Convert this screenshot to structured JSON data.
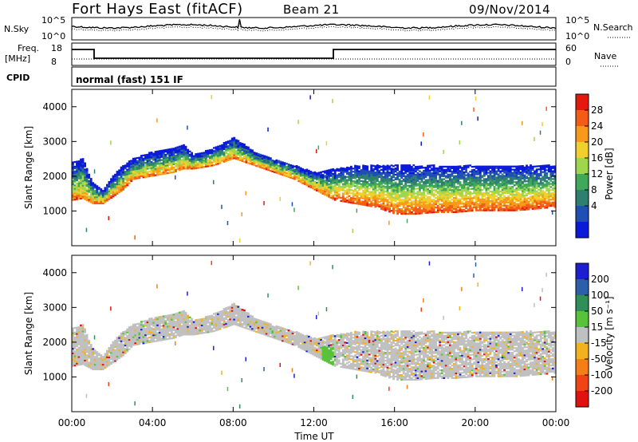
{
  "header": {
    "station": "Fort Hays East (fitACF)",
    "beam": "Beam 21",
    "date": "09/Nov/2014"
  },
  "panel_labels": {
    "nsky": "N.Sky",
    "nsearch": "N.Search",
    "freq": "Freq.",
    "freq_unit": "[MHz]",
    "nave": "Nave",
    "cpid": "CPID",
    "cpid_value": "normal (fast) 151 IF",
    "nsky_ticks": [
      "10^5",
      "10^0"
    ],
    "nsearch_ticks": [
      "10^5",
      "10^0"
    ],
    "freq_ticks": [
      "18",
      "8"
    ],
    "nave_ticks": [
      "60",
      "0"
    ]
  },
  "chart_data": [
    {
      "type": "heatmap",
      "name": "power",
      "ylabel": "Slant Range [km]",
      "ylim": [
        0,
        4500
      ],
      "yticks": [
        "4000",
        "3000",
        "2000",
        "1000"
      ],
      "yticks_values": [
        4000,
        3000,
        2000,
        1000
      ],
      "colorbar_label": "Power [dB]",
      "colorbar_ticks": [
        "28",
        "24",
        "20",
        "16",
        "12",
        "8",
        "4"
      ],
      "colorbar_ticks_values": [
        28,
        24,
        20,
        16,
        12,
        8,
        4
      ],
      "colorbar_range": [
        0,
        30
      ],
      "colors": [
        "#0a1ad8",
        "#1f4fb5",
        "#2e7f6f",
        "#3fa85a",
        "#9fd64e",
        "#f0d02c",
        "#f79a1b",
        "#f25c16",
        "#e3190e"
      ],
      "backscatter_band": {
        "x_hours": [
          0,
          0.5,
          1,
          1.5,
          2,
          2.5,
          3,
          4,
          5,
          5.5,
          6,
          7,
          8,
          9,
          10,
          11,
          12,
          13,
          14,
          15,
          16,
          17,
          18,
          19,
          20,
          21,
          22,
          23,
          24
        ],
        "lower_km": [
          1300,
          1350,
          1200,
          1200,
          1400,
          1600,
          1900,
          2000,
          2100,
          2200,
          2200,
          2300,
          2500,
          2300,
          2100,
          1900,
          1600,
          1300,
          1200,
          1100,
          900,
          900,
          950,
          950,
          1000,
          1000,
          1000,
          1050,
          1100
        ],
        "upper_km": [
          2400,
          2500,
          1800,
          1600,
          2000,
          2300,
          2500,
          2700,
          2800,
          2900,
          2600,
          2800,
          3100,
          2700,
          2500,
          2300,
          2100,
          2200,
          2300,
          2300,
          2300,
          2300,
          2300,
          2300,
          2300,
          2300,
          2300,
          2300,
          2300
        ]
      }
    },
    {
      "type": "heatmap",
      "name": "velocity",
      "xlabel": "Time UT",
      "ylabel": "Slant Range [km]",
      "ylim": [
        0,
        4500
      ],
      "yticks": [
        "4000",
        "3000",
        "2000",
        "1000"
      ],
      "yticks_values": [
        4000,
        3000,
        2000,
        1000
      ],
      "xticks": [
        "00:00",
        "04:00",
        "08:00",
        "12:00",
        "16:00",
        "20:00",
        "00:00"
      ],
      "xticks_hours": [
        0,
        4,
        8,
        12,
        16,
        20,
        24
      ],
      "colorbar_label": "Velocity [m s⁻¹]",
      "colorbar_ticks": [
        "200",
        "100",
        "50",
        "15",
        "-15",
        "-50",
        "-100",
        "-200"
      ],
      "colors": [
        "#1c1fd0",
        "#2c5fa8",
        "#2f8f57",
        "#57c23a",
        "#c0c0c0",
        "#f2b21d",
        "#f57f17",
        "#f04414",
        "#e31010"
      ]
    }
  ]
}
